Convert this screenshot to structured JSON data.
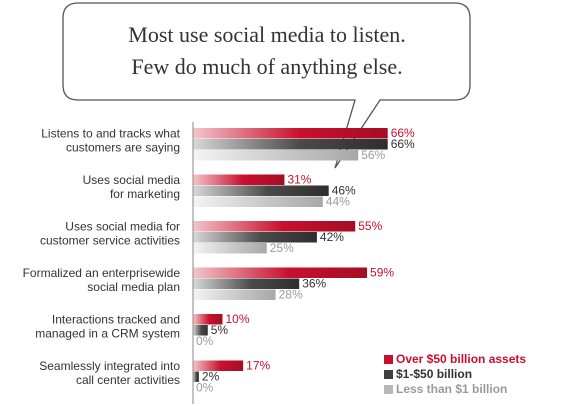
{
  "callout": {
    "line1": "Most use social media to listen.",
    "line2": "Few do much of anything else."
  },
  "chart_data": {
    "type": "bar",
    "orientation": "horizontal",
    "title": "",
    "xlabel": "",
    "ylabel": "",
    "xlim": [
      0,
      100
    ],
    "grid": false,
    "legend_position": "bottom-right",
    "categories": [
      [
        "Listens to and tracks what",
        "customers are saying"
      ],
      [
        "Uses social media",
        "for marketing"
      ],
      [
        "Uses social media for",
        "customer service activities"
      ],
      [
        "Formalized an enterprisewide",
        "social media plan"
      ],
      [
        "Interactions tracked and",
        "managed in a CRM system"
      ],
      [
        "Seamlessly integrated into",
        "call center activities"
      ]
    ],
    "series": [
      {
        "name": "Over $50 billion assets",
        "color": "#c8102e",
        "label_color": "#c8102e",
        "values": [
          66,
          31,
          55,
          59,
          10,
          17
        ]
      },
      {
        "name": "$1-$50 billion",
        "color": "#404040",
        "label_color": "#333333",
        "values": [
          66,
          46,
          42,
          36,
          5,
          2
        ]
      },
      {
        "name": "Less than $1 billion",
        "color": "#b8b8b8",
        "label_color": "#9a9a9a",
        "values": [
          56,
          44,
          25,
          28,
          0,
          0
        ]
      }
    ]
  }
}
